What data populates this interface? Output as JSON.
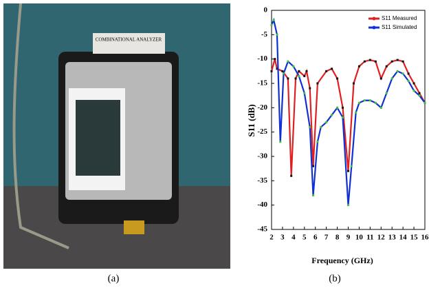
{
  "photo": {
    "label": "COMBINATIONAL ANALYZER",
    "caption": "(a)"
  },
  "chart_data": {
    "type": "line",
    "caption": "(b)",
    "xlabel": "Frequency (GHz)",
    "ylabel": "S11 (dB)",
    "xlim": [
      2,
      16
    ],
    "xticks": [
      2,
      3,
      4,
      5,
      6,
      7,
      8,
      9,
      10,
      11,
      12,
      13,
      14,
      15,
      16
    ],
    "ylim": [
      -45,
      0
    ],
    "yticks": [
      0,
      -5,
      -10,
      -15,
      -20,
      -25,
      -30,
      -35,
      -40,
      -45
    ],
    "legend": "top-right",
    "series": [
      {
        "name": "S11 Measured",
        "color": "#e02020",
        "marker_color": "#111111",
        "x": [
          2,
          2.3,
          2.5,
          3,
          3.5,
          3.8,
          4.2,
          4.5,
          5,
          5.2,
          5.5,
          5.8,
          6.2,
          7,
          7.5,
          8,
          8.5,
          9,
          9.5,
          10,
          10.5,
          11,
          11.5,
          12,
          12.5,
          13,
          13.5,
          14,
          14.5,
          15,
          15.5,
          16
        ],
        "values": [
          -12.5,
          -10,
          -12,
          -12.5,
          -14,
          -34,
          -14,
          -12.5,
          -13.5,
          -12.5,
          -16,
          -32,
          -15,
          -12.5,
          -12,
          -14,
          -20,
          -33,
          -15,
          -11.5,
          -10.5,
          -10.2,
          -10.5,
          -14,
          -11.5,
          -10.5,
          -10.2,
          -10.5,
          -13,
          -15,
          -17,
          -19
        ]
      },
      {
        "name": "S11 Simulated",
        "color": "#1030d0",
        "marker_color": "#40c040",
        "x": [
          2,
          2.2,
          2.5,
          2.8,
          3.1,
          3.5,
          4,
          4.5,
          5,
          5.5,
          5.8,
          6.2,
          6.5,
          7,
          7.5,
          8,
          8.5,
          9,
          9.3,
          9.7,
          10,
          10.5,
          11,
          11.5,
          12,
          12.5,
          13,
          13.5,
          14,
          14.5,
          15,
          15.5,
          16
        ],
        "values": [
          -3,
          -2,
          -5,
          -27,
          -13,
          -10.5,
          -11.5,
          -13.5,
          -17,
          -24,
          -38,
          -27,
          -24,
          -23,
          -21.5,
          -20,
          -22,
          -40,
          -32,
          -21,
          -19,
          -18.5,
          -18.5,
          -19,
          -20,
          -17,
          -14,
          -12.5,
          -13,
          -14.5,
          -16.5,
          -17.5,
          -19
        ]
      }
    ]
  }
}
